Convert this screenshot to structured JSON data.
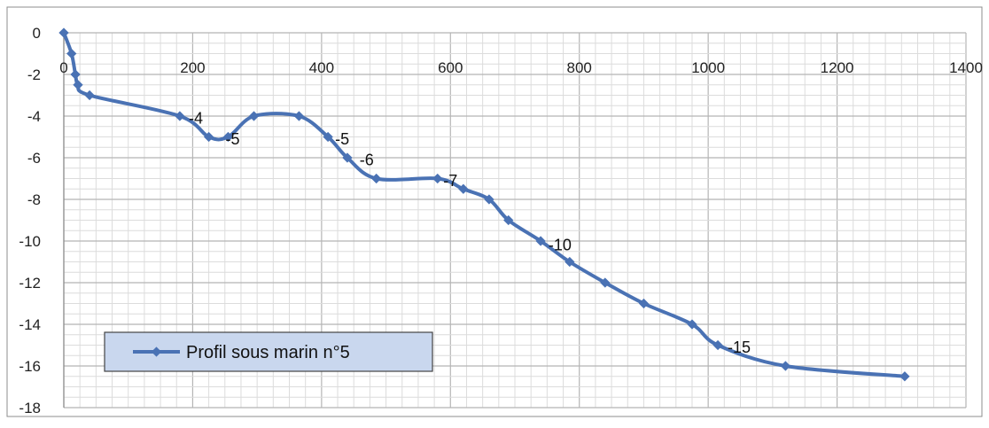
{
  "chart_data": {
    "type": "line",
    "title": "",
    "xlabel": "",
    "ylabel": "",
    "xlim": [
      0,
      1400
    ],
    "ylim": [
      -18,
      0
    ],
    "x_ticks": [
      0,
      200,
      400,
      600,
      800,
      1000,
      1200,
      1400
    ],
    "y_ticks": [
      0,
      -2,
      -4,
      -6,
      -8,
      -10,
      -12,
      -14,
      -16,
      -18
    ],
    "grid": "major and minor",
    "legend_position": "bottom-left",
    "colors": {
      "series": "#4a72b4",
      "grid": "#b5b5b5",
      "minor_grid": "#dcdcdc",
      "legend_fill": "#c9d7ee",
      "frame": "#8c8c8c"
    },
    "series": [
      {
        "name": "Profil  sous marin n°5",
        "x": [
          0,
          12,
          18,
          22,
          40,
          180,
          225,
          255,
          295,
          365,
          410,
          440,
          485,
          580,
          620,
          660,
          690,
          740,
          785,
          840,
          900,
          975,
          1015,
          1120,
          1305
        ],
        "y": [
          0,
          -1,
          -2,
          -2.5,
          -3,
          -4,
          -5,
          -5,
          -4,
          -4,
          -5,
          -6,
          -7,
          -7,
          -7.5,
          -8,
          -9,
          -10,
          -11,
          -12,
          -13,
          -14,
          -15,
          -16,
          -16.5
        ]
      }
    ],
    "annotations": [
      {
        "text": "-4",
        "x": 205,
        "y": -4.1
      },
      {
        "text": "-5",
        "x": 262,
        "y": -5.1
      },
      {
        "text": "-5",
        "x": 432,
        "y": -5.1
      },
      {
        "text": "-6",
        "x": 470,
        "y": -6.1
      },
      {
        "text": "-7",
        "x": 600,
        "y": -7.1
      },
      {
        "text": "-10",
        "x": 770,
        "y": -10.2
      },
      {
        "text": "-15",
        "x": 1048,
        "y": -15.1
      }
    ]
  }
}
